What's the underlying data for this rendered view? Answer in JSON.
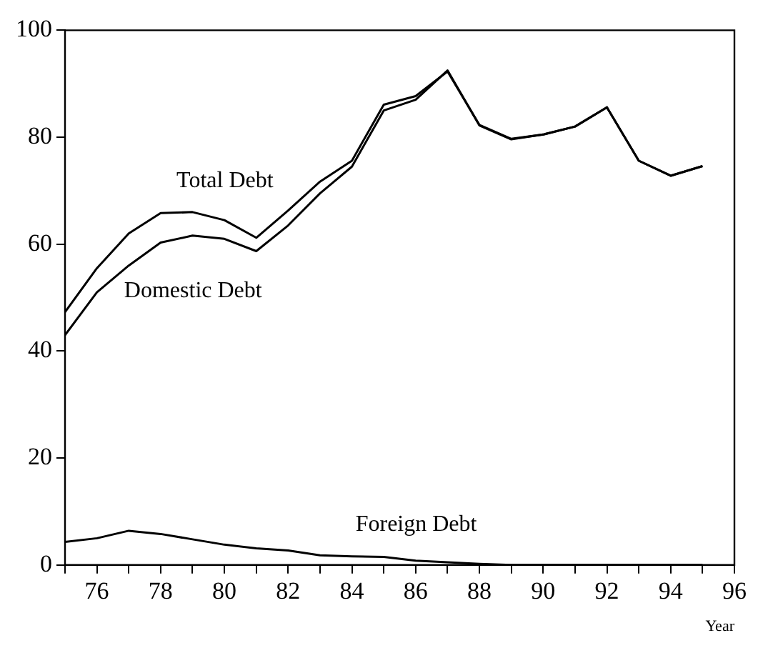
{
  "chart_data": {
    "type": "line",
    "xlabel": "Year",
    "x": [
      75,
      76,
      77,
      78,
      79,
      80,
      81,
      82,
      83,
      84,
      85,
      86,
      87,
      88,
      89,
      90,
      91,
      92,
      93,
      94,
      95
    ],
    "series": [
      {
        "name": "Total Debt",
        "color": "#000000",
        "values": [
          47.3,
          55.5,
          62,
          65.8,
          66,
          64.5,
          61.2,
          66.3,
          71.7,
          75.6,
          86.1,
          87.7,
          92.3,
          82.3,
          79.7,
          80.5,
          82,
          85.6,
          75.6,
          72.8,
          74.6
        ]
      },
      {
        "name": "Domestic Debt",
        "color": "#000000",
        "values": [
          43,
          51,
          56,
          60.3,
          61.6,
          61,
          58.7,
          63.5,
          69.5,
          74.5,
          85,
          87,
          92.5,
          82.2,
          79.6,
          80.5,
          82,
          85.6,
          75.6,
          72.8,
          74.6
        ]
      },
      {
        "name": "Foreign Debt",
        "color": "#000000",
        "values": [
          4.3,
          5,
          6.4,
          5.8,
          4.8,
          3.8,
          3.1,
          2.7,
          1.8,
          1.6,
          1.5,
          0.8,
          0.5,
          0.2,
          0,
          0,
          0,
          0,
          0,
          0,
          0
        ]
      }
    ],
    "xlim": [
      75,
      96
    ],
    "xticks": [
      {
        "value": 75,
        "label": null
      },
      76,
      {
        "value": 77,
        "label": null
      },
      78,
      {
        "value": 79,
        "label": null
      },
      80,
      {
        "value": 81,
        "label": null
      },
      82,
      {
        "value": 83,
        "label": null
      },
      84,
      {
        "value": 85,
        "label": null
      },
      86,
      {
        "value": 87,
        "label": null
      },
      88,
      {
        "value": 89,
        "label": null
      },
      90,
      {
        "value": 91,
        "label": null
      },
      92,
      {
        "value": 93,
        "label": null
      },
      94,
      {
        "value": 95,
        "label": null
      },
      96
    ],
    "ylim": [
      0,
      100
    ],
    "yticks": [
      0,
      20,
      40,
      60,
      80,
      100
    ],
    "grid": false,
    "legend": false,
    "marker": "none",
    "line_style": "solid"
  }
}
